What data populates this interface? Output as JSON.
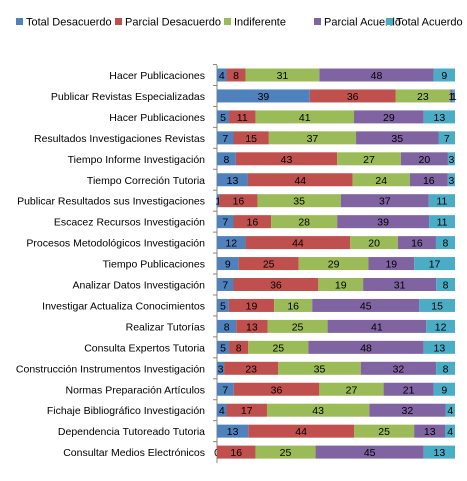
{
  "chart_data": {
    "type": "bar",
    "orientation": "horizontal",
    "stacked": true,
    "normalized": true,
    "grid": false,
    "legend_position": "top",
    "categories": [
      "Hacer Publicaciones",
      "Publicar Revistas Especializadas",
      "Hacer Publicaciones",
      "Resultados Investigaciones Revistas",
      "Tiempo Informe Investigación",
      "Tiempo Correción Tutoria",
      "Publicar Resultados sus Investigaciones",
      "Escacez Recursos Investigación",
      "Procesos Metodológicos Investigación",
      "Tiempo Publicaciones",
      "Analizar Datos Investigación",
      "Investigar Actualiza Conocimientos",
      "Realizar Tutorías",
      "Consulta Expertos Tutoria",
      "Construcción Instrumentos Investigación",
      "Normas Preparación Artículos",
      "Fichaje Bibliográfico Investigación",
      "Dependencia Tutoreado Tutoria",
      "Consultar Medios Electrónicos"
    ],
    "series": [
      {
        "name": "Total Desacuerdo",
        "color": "#4F81BD",
        "values": [
          4,
          39,
          5,
          7,
          8,
          13,
          1,
          7,
          12,
          9,
          7,
          5,
          8,
          5,
          3,
          7,
          4,
          13,
          0
        ]
      },
      {
        "name": "Parcial Desacuerdo",
        "color": "#C0504D",
        "values": [
          8,
          36,
          11,
          15,
          43,
          44,
          16,
          16,
          44,
          25,
          36,
          19,
          13,
          8,
          23,
          36,
          17,
          44,
          16
        ]
      },
      {
        "name": "Indiferente",
        "color": "#9BBB59",
        "values": [
          31,
          23,
          41,
          37,
          27,
          24,
          35,
          28,
          20,
          29,
          19,
          16,
          25,
          25,
          35,
          27,
          43,
          25,
          25
        ]
      },
      {
        "name": "Parcial Acuerdo",
        "color": "#8064A2",
        "values": [
          48,
          1,
          29,
          35,
          20,
          16,
          37,
          39,
          16,
          19,
          31,
          45,
          41,
          48,
          32,
          21,
          32,
          13,
          45
        ]
      },
      {
        "name": "Total Acuerdo",
        "color": "#4BACC6",
        "values": [
          9,
          1,
          13,
          7,
          3,
          3,
          11,
          11,
          8,
          17,
          8,
          15,
          12,
          13,
          8,
          9,
          4,
          4,
          13
        ]
      }
    ],
    "title": "",
    "xlabel": "",
    "ylabel": ""
  }
}
